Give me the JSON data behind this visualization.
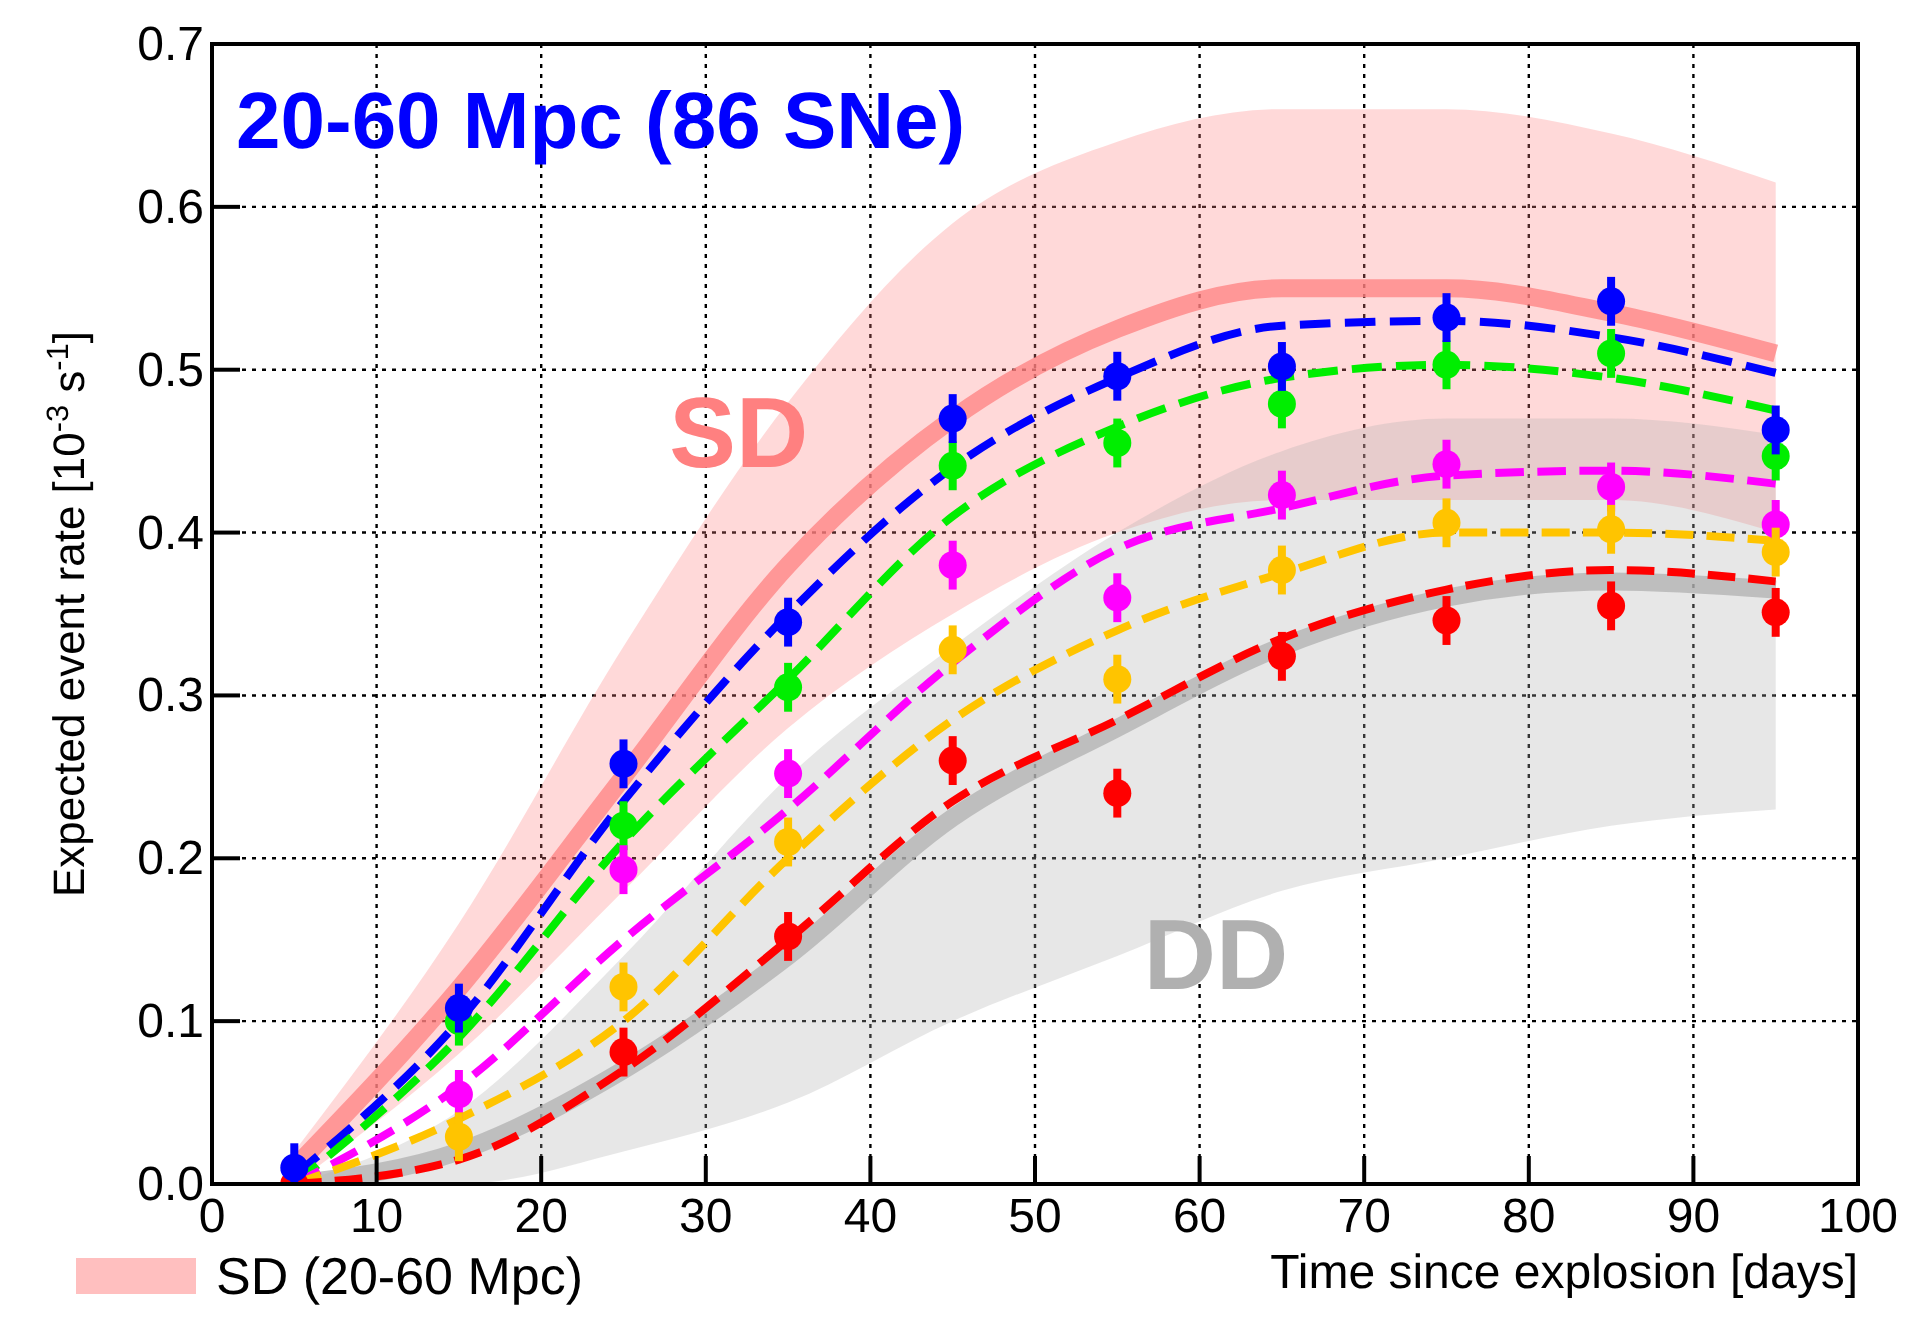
{
  "chart_data": {
    "type": "scatter",
    "title": "20-60 Mpc (86 SNe)",
    "xlabel": "Time since explosion [days]",
    "ylabel": "Expected event rate [10$^{-3}$ s$^{-1}$]",
    "x": [
      5,
      15,
      25,
      35,
      45,
      55,
      65,
      75,
      85,
      95
    ],
    "xlim": [
      0,
      100
    ],
    "xticks": [
      0,
      10,
      20,
      30,
      40,
      50,
      60,
      70,
      80,
      90,
      100
    ],
    "ylim": [
      0,
      0.7
    ],
    "yticks": [
      {
        "value": 0,
        "label": "0.0"
      },
      0.1,
      0.2,
      0.3,
      0.4,
      0.5,
      0.6,
      0.7
    ],
    "grid": true,
    "legend": "bottom left",
    "annotations": [
      "SD",
      "DD"
    ],
    "series": [
      {
        "name": "SD (20-60 Mpc)",
        "type": "line",
        "line_style": "solid",
        "color": "#ff8080",
        "values": [
          0.01,
          0.12,
          0.25,
          0.38,
          0.47,
          0.525,
          0.55,
          0.55,
          0.535,
          0.51
        ],
        "lower": [
          0,
          0.08,
          0.18,
          0.28,
          0.35,
          0.4,
          0.42,
          0.42,
          0.42,
          0.4
        ],
        "upper": [
          0.02,
          0.16,
          0.33,
          0.48,
          0.59,
          0.64,
          0.66,
          0.66,
          0.645,
          0.615
        ]
      },
      {
        "type": "line",
        "line_style": "solid",
        "color": "#b0b0b0",
        "values": [
          0,
          0.02,
          0.07,
          0.14,
          0.225,
          0.28,
          0.33,
          0.36,
          0.37,
          0.365
        ],
        "lower": [
          0,
          0,
          0.02,
          0.05,
          0.1,
          0.14,
          0.18,
          0.2,
          0.22,
          0.23
        ],
        "upper": [
          0,
          0.045,
          0.14,
          0.25,
          0.33,
          0.4,
          0.45,
          0.47,
          0.47,
          0.46
        ]
      },
      {
        "type": "line",
        "line_style": "dashed",
        "color": "#0000ff",
        "values": [
          0.005,
          0.1,
          0.235,
          0.35,
          0.44,
          0.495,
          0.527,
          0.53,
          0.52,
          0.498
        ]
      },
      {
        "type": "line",
        "line_style": "dashed",
        "color": "#00ee00",
        "values": [
          0,
          0.09,
          0.21,
          0.31,
          0.41,
          0.465,
          0.495,
          0.503,
          0.495,
          0.475
        ]
      },
      {
        "type": "line",
        "line_style": "dashed",
        "color": "#ff00ff",
        "values": [
          0,
          0.06,
          0.15,
          0.23,
          0.32,
          0.39,
          0.415,
          0.435,
          0.438,
          0.43
        ]
      },
      {
        "type": "line",
        "line_style": "dashed",
        "color": "#ffc400",
        "values": [
          0,
          0.04,
          0.1,
          0.2,
          0.285,
          0.34,
          0.375,
          0.4,
          0.4,
          0.395
        ]
      },
      {
        "type": "line",
        "line_style": "dashed",
        "color": "#ff0000",
        "values": [
          0,
          0.015,
          0.07,
          0.15,
          0.235,
          0.285,
          0.335,
          0.365,
          0.377,
          0.37
        ]
      },
      {
        "marker": "circle",
        "color": "#00ee00",
        "values": [
          null,
          0.1,
          0.22,
          0.305,
          0.441,
          0.455,
          0.479,
          0.503,
          0.51,
          0.447
        ],
        "errors": [
          null,
          0.015,
          0.015,
          0.015,
          0.015,
          0.015,
          0.015,
          0.015,
          0.015,
          0.015
        ]
      },
      {
        "marker": "circle",
        "color": "#ff00ff",
        "values": [
          null,
          0.055,
          0.193,
          0.252,
          0.38,
          0.36,
          0.423,
          0.442,
          0.428,
          0.405
        ],
        "errors": [
          null,
          0.015,
          0.015,
          0.015,
          0.015,
          0.015,
          0.015,
          0.015,
          0.015,
          0.015
        ]
      },
      {
        "marker": "circle",
        "color": "#ffc400",
        "values": [
          null,
          0.029,
          0.121,
          0.21,
          0.328,
          0.31,
          0.377,
          0.406,
          0.402,
          0.388
        ],
        "errors": [
          null,
          0.015,
          0.015,
          0.015,
          0.015,
          0.015,
          0.015,
          0.015,
          0.015,
          0.015
        ]
      },
      {
        "marker": "circle",
        "color": "#ff0000",
        "values": [
          0,
          null,
          0.081,
          0.152,
          0.26,
          0.24,
          0.324,
          0.346,
          0.355,
          0.351
        ],
        "errors": [
          null,
          null,
          0.015,
          0.015,
          0.015,
          0.015,
          0.015,
          0.015,
          0.015,
          0.015
        ]
      },
      {
        "marker": "circle",
        "color": "#0000ff",
        "values": [
          0.01,
          0.108,
          0.258,
          0.345,
          0.47,
          0.496,
          0.502,
          0.532,
          0.542,
          0.463
        ],
        "errors": [
          0.015,
          0.015,
          0.015,
          0.015,
          0.015,
          0.015,
          0.015,
          0.015,
          0.015,
          0.015
        ]
      }
    ]
  }
}
